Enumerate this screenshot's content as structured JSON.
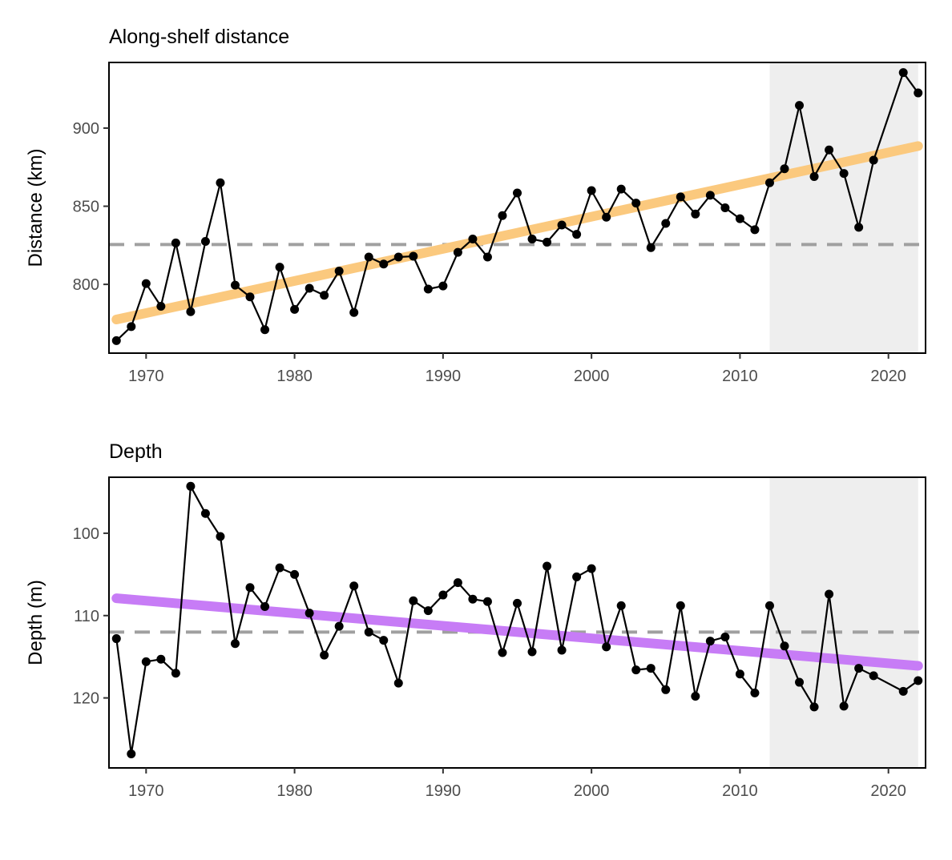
{
  "chart_data": [
    {
      "type": "line",
      "title": "Along-shelf distance",
      "xlabel": "",
      "ylabel": "Distance (km)",
      "xlim": [
        1967.5,
        2022.5
      ],
      "ylim": [
        756,
        942
      ],
      "x_ticks": [
        1970,
        1980,
        1990,
        2000,
        2010,
        2020
      ],
      "y_ticks": [
        800,
        850,
        900
      ],
      "reversed_y": false,
      "grid": false,
      "shaded_period": [
        2012,
        2022
      ],
      "reference_line": {
        "value": 825.5,
        "style": "dashed",
        "color": "#a0a0a0"
      },
      "trend_line": {
        "x": [
          1968,
          2022
        ],
        "y": [
          777.5,
          888.5
        ],
        "color": "#fbc97e"
      },
      "series": [
        {
          "x": [
            1968,
            1969,
            1970,
            1971,
            1972,
            1973,
            1974,
            1975,
            1976,
            1977,
            1978,
            1979,
            1980,
            1981,
            1982,
            1983,
            1984,
            1985,
            1986,
            1987,
            1988,
            1989,
            1990,
            1991,
            1992,
            1993,
            1994,
            1995,
            1996,
            1997,
            1998,
            1999,
            2000,
            2001,
            2002,
            2003,
            2004,
            2005,
            2006,
            2007,
            2008,
            2009,
            2010,
            2011,
            2012,
            2013,
            2014,
            2015,
            2016,
            2017,
            2018,
            2019,
            2021,
            2022
          ],
          "y": [
            764,
            773,
            800.5,
            786,
            826.5,
            782.5,
            827.5,
            865,
            799.5,
            792,
            771,
            811,
            784,
            797.5,
            793,
            808.5,
            782,
            817.5,
            813,
            817.5,
            818,
            797,
            799,
            820.5,
            829,
            817.5,
            844,
            858.5,
            829,
            827,
            838,
            832,
            860,
            843,
            861,
            852,
            823.5,
            839,
            856,
            845,
            857,
            849,
            842,
            835,
            865,
            874,
            914.5,
            869,
            886,
            871,
            836.5,
            879.5,
            935.5,
            922.5
          ],
          "color": "#000000"
        }
      ]
    },
    {
      "type": "line",
      "title": "Depth",
      "xlabel": "",
      "ylabel": "Depth (m)",
      "xlim": [
        1967.5,
        2022.5
      ],
      "ylim": [
        128.5,
        93.2
      ],
      "x_ticks": [
        1970,
        1980,
        1990,
        2000,
        2010,
        2020
      ],
      "y_ticks": [
        100,
        110,
        120
      ],
      "reversed_y": true,
      "grid": false,
      "shaded_period": [
        2012,
        2022
      ],
      "reference_line": {
        "value": 112,
        "style": "dashed",
        "color": "#a0a0a0"
      },
      "trend_line": {
        "x": [
          1968,
          2022
        ],
        "y": [
          107.9,
          116.1
        ],
        "color": "#c77cf6"
      },
      "series": [
        {
          "x": [
            1968,
            1969,
            1970,
            1971,
            1972,
            1973,
            1974,
            1975,
            1976,
            1977,
            1978,
            1979,
            1980,
            1981,
            1982,
            1983,
            1984,
            1985,
            1986,
            1987,
            1988,
            1989,
            1990,
            1991,
            1992,
            1993,
            1994,
            1995,
            1996,
            1997,
            1998,
            1999,
            2000,
            2001,
            2002,
            2003,
            2004,
            2005,
            2006,
            2007,
            2008,
            2009,
            2010,
            2011,
            2012,
            2013,
            2014,
            2015,
            2016,
            2017,
            2018,
            2019,
            2021,
            2022
          ],
          "y": [
            112.8,
            126.8,
            115.6,
            115.3,
            117,
            94.3,
            97.6,
            100.4,
            113.4,
            106.6,
            108.9,
            104.2,
            105,
            109.7,
            114.8,
            111.3,
            106.4,
            112,
            113,
            118.2,
            108.2,
            109.4,
            107.5,
            106,
            108,
            108.3,
            114.5,
            108.5,
            114.4,
            104,
            114.2,
            105.3,
            104.3,
            113.8,
            108.8,
            116.6,
            116.4,
            119,
            108.8,
            119.8,
            113.1,
            112.6,
            117.1,
            119.4,
            108.8,
            113.7,
            118.1,
            121.1,
            107.4,
            121,
            116.4,
            117.3,
            119.2,
            117.9
          ],
          "color": "#000000"
        }
      ]
    }
  ]
}
